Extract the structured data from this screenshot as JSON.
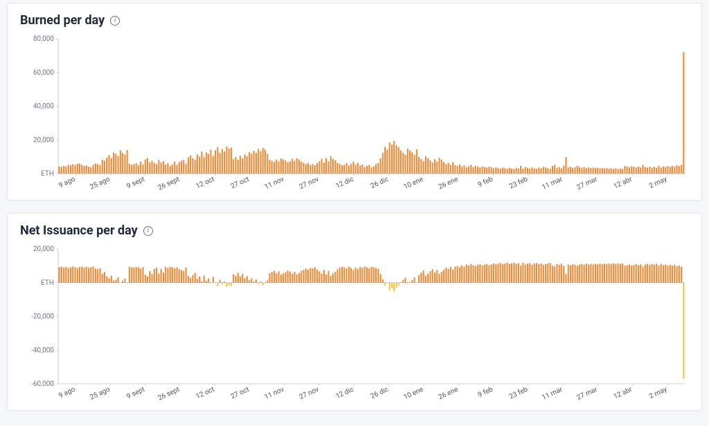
{
  "colors": {
    "bar_positive": "#ee8a34",
    "bar_negative": "#f3c33a",
    "axis": "#9ca3af",
    "tick_text": "#6b7280",
    "xtick_text": "#4b5563",
    "background": "#ffffff",
    "page_bg": "#f5f6f7"
  },
  "burned_chart": {
    "title": "Burned per day",
    "type": "bar",
    "unit_label": "ETH",
    "ylim": [
      0,
      80000
    ],
    "ytick_step": 20000,
    "yticks": [
      "80,000",
      "60,000",
      "40,000",
      "20,000",
      "ETH"
    ],
    "x_labels": [
      "9 ago",
      "25 ago",
      "9 sept",
      "26 sept",
      "12 oct",
      "27 oct",
      "11 nov",
      "27 nov",
      "12 dic",
      "26 dic",
      "10 ene",
      "26 ene",
      "9 feb",
      "23 feb",
      "11 mar",
      "27 mar",
      "12 abr",
      "2 may"
    ],
    "values": [
      4300,
      4000,
      4600,
      4200,
      5200,
      4900,
      5600,
      5000,
      5800,
      6000,
      5200,
      4600,
      4800,
      4100,
      3800,
      5200,
      6100,
      5700,
      5000,
      8200,
      7600,
      9400,
      10900,
      9200,
      12400,
      11800,
      10400,
      13800,
      12200,
      11300,
      14000,
      5800,
      5200,
      5600,
      6100,
      4900,
      7100,
      5500,
      8400,
      9200,
      6700,
      7600,
      6300,
      5700,
      8100,
      6500,
      7400,
      5300,
      6200,
      4600,
      5400,
      7100,
      5100,
      6800,
      7600,
      8100,
      5800,
      9500,
      10800,
      9200,
      8100,
      11400,
      10100,
      13100,
      9800,
      12600,
      11700,
      14200,
      10400,
      13800,
      15700,
      12300,
      14600,
      13200,
      16100,
      14900,
      15400,
      8500,
      9800,
      8200,
      10600,
      9100,
      11400,
      10200,
      12700,
      11800,
      13500,
      12300,
      14600,
      13200,
      15100,
      14200,
      11800,
      8200,
      7600,
      6900,
      8400,
      7200,
      9100,
      8500,
      7800,
      6700,
      7400,
      8900,
      7600,
      9200,
      8400,
      7000,
      6400,
      5700,
      6300,
      5100,
      5600,
      4900,
      6200,
      7400,
      8800,
      6500,
      9200,
      7300,
      10200,
      8600,
      7800,
      6400,
      5600,
      4900,
      5300,
      6200,
      4700,
      5800,
      7100,
      5200,
      6400,
      4800,
      5400,
      3900,
      4600,
      5200,
      3700,
      4300,
      5700,
      6300,
      9100,
      12400,
      15800,
      14200,
      18600,
      17200,
      19400,
      16800,
      15600,
      13800,
      12400,
      11200,
      14800,
      13700,
      12600,
      11200,
      14400,
      9800,
      8600,
      7400,
      10200,
      9100,
      7800,
      6600,
      8500,
      7100,
      9400,
      8200,
      6900,
      5700,
      6400,
      5200,
      6800,
      5000,
      4600,
      5400,
      4200,
      4900,
      3700,
      4400,
      5200,
      3900,
      4700,
      4100,
      3600,
      4300,
      3900,
      3500,
      4200,
      3800,
      3100,
      3700,
      3300,
      2900,
      3600,
      3200,
      2800,
      3500,
      3100,
      2700,
      3400,
      3000,
      4700,
      2900,
      3900,
      3400,
      2900,
      3700,
      3000,
      2800,
      3600,
      3200,
      4000,
      3600,
      3200,
      2800,
      4600,
      5200,
      3400,
      3900,
      3100,
      4700,
      9800,
      3700,
      4100,
      3300,
      3800,
      4600,
      3800,
      3400,
      3900,
      3200,
      3700,
      3300,
      3600,
      3200,
      3500,
      3100,
      3400,
      3000,
      3300,
      2900,
      3200,
      2800,
      3100,
      2700,
      3000,
      2700,
      4600,
      4200,
      3800,
      4400,
      4000,
      3600,
      4200,
      3700,
      5200,
      3900,
      3500,
      4100,
      3600,
      4000,
      3400,
      4700,
      3600,
      4300,
      3900,
      4500,
      4100,
      4600,
      4200,
      4900,
      4500,
      5200,
      72000
    ]
  },
  "issuance_chart": {
    "title": "Net Issuance per day",
    "type": "bar",
    "unit_label": "ETH",
    "ylim": [
      -60000,
      20000
    ],
    "ytick_step": 20000,
    "yticks": [
      "20,000",
      "ETH",
      "-20,000",
      "-40,000",
      "-60,000"
    ],
    "x_labels": [
      "9 ago",
      "25 ago",
      "9 sept",
      "26 sept",
      "12 oct",
      "27 oct",
      "11 nov",
      "27 nov",
      "12 dic",
      "26 dic",
      "10 ene",
      "26 ene",
      "9 feb",
      "23 feb",
      "11 mar",
      "27 mar",
      "12 abr",
      "2 may"
    ],
    "values": [
      9200,
      9500,
      9000,
      9400,
      8800,
      9100,
      9600,
      9200,
      8700,
      9300,
      9500,
      9000,
      9400,
      8900,
      9200,
      9600,
      8400,
      8000,
      8600,
      5300,
      6400,
      3800,
      2600,
      4200,
      1300,
      1800,
      3200,
      -200,
      1100,
      2400,
      -400,
      9500,
      9200,
      9000,
      9300,
      9100,
      8400,
      9200,
      4800,
      3700,
      6800,
      5200,
      8100,
      9000,
      5400,
      8200,
      6100,
      9300,
      8800,
      9400,
      9100,
      8600,
      9200,
      8100,
      7400,
      6900,
      9000,
      4100,
      2800,
      4500,
      5800,
      2300,
      3700,
      900,
      4200,
      1100,
      2500,
      -500,
      3400,
      -400,
      -2000,
      1700,
      -1100,
      700,
      -2500,
      -1400,
      -1900,
      5100,
      4200,
      5800,
      3700,
      5200,
      2700,
      3900,
      1500,
      2600,
      700,
      1900,
      -900,
      600,
      -1600,
      -500,
      1400,
      5700,
      6400,
      7100,
      5600,
      6800,
      4900,
      5500,
      6300,
      7200,
      6600,
      5300,
      6500,
      4900,
      5800,
      7100,
      7600,
      8300,
      7800,
      8700,
      8500,
      9200,
      7900,
      6700,
      5300,
      7600,
      4900,
      7000,
      4100,
      5700,
      6500,
      8000,
      9000,
      9500,
      9100,
      8400,
      9400,
      8700,
      7500,
      8900,
      8100,
      9300,
      8800,
      9600,
      9100,
      8600,
      9500,
      9200,
      8700,
      8300,
      5200,
      2000,
      -1700,
      -200,
      -4500,
      -3100,
      -5200,
      -2800,
      -1700,
      300,
      1700,
      3000,
      -600,
      400,
      1600,
      3100,
      -100,
      4600,
      6000,
      7200,
      4200,
      5500,
      6900,
      8000,
      6100,
      7500,
      5200,
      6500,
      7700,
      8900,
      8200,
      9300,
      7800,
      9500,
      9900,
      9200,
      10300,
      9600,
      10800,
      10100,
      11200,
      10400,
      9800,
      10600,
      10900,
      10300,
      10700,
      11100,
      10400,
      10800,
      11500,
      10900,
      11300,
      11700,
      11000,
      11400,
      11900,
      11100,
      11500,
      11900,
      11200,
      11600,
      10000,
      11800,
      10800,
      11300,
      11600,
      10700,
      11400,
      11700,
      11000,
      11400,
      10700,
      11000,
      11400,
      11800,
      10100,
      9600,
      11100,
      10600,
      11300,
      10000,
      5100,
      10800,
      10400,
      11100,
      10600,
      10000,
      10700,
      11100,
      10700,
      11300,
      10800,
      11200,
      10800,
      11200,
      10900,
      11300,
      10900,
      11300,
      11000,
      11400,
      11000,
      11400,
      11100,
      11500,
      11100,
      11400,
      10000,
      10400,
      10800,
      10200,
      10600,
      11000,
      10400,
      10900,
      9500,
      10800,
      11200,
      10600,
      11100,
      10700,
      11300,
      10100,
      11100,
      10400,
      10800,
      10200,
      10600,
      10100,
      10500,
      9800,
      10200,
      9400,
      -57000
    ]
  }
}
